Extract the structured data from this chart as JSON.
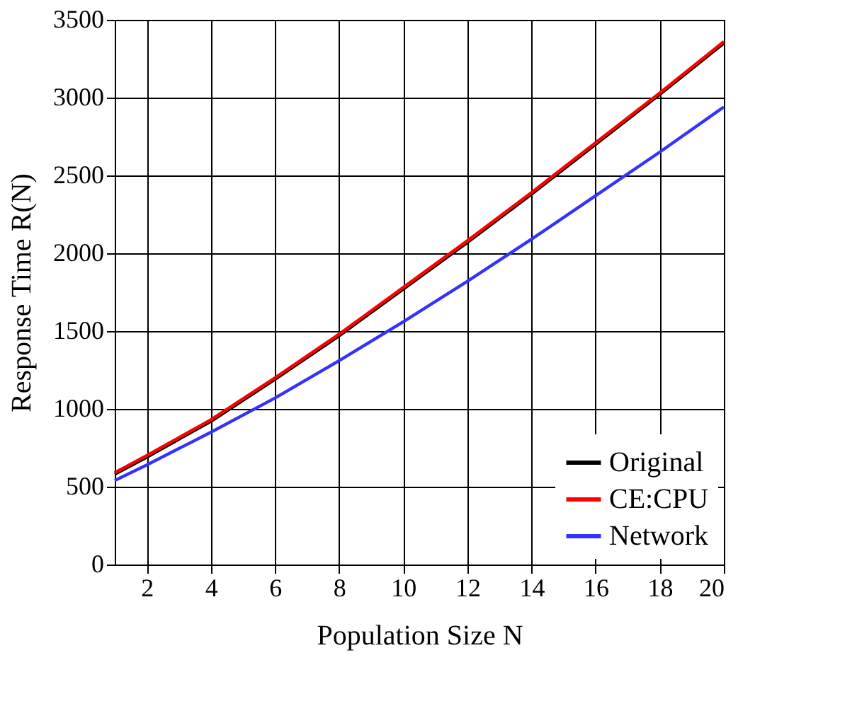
{
  "chart_data": {
    "type": "line",
    "xlabel": "Population Size N",
    "ylabel": "Response Time R(N)",
    "x": [
      1,
      2,
      4,
      6,
      8,
      10,
      12,
      14,
      16,
      18,
      20
    ],
    "series": [
      {
        "name": "Original",
        "color": "#000000",
        "values": [
          580,
          690,
          920,
          1190,
          1470,
          1770,
          2070,
          2380,
          2700,
          3020,
          3350
        ]
      },
      {
        "name": "CE:CPU",
        "color": "#ff0000",
        "values": [
          590,
          700,
          930,
          1200,
          1480,
          1780,
          2080,
          2390,
          2710,
          3030,
          3360
        ]
      },
      {
        "name": "Network",
        "color": "#3333ff",
        "values": [
          540,
          640,
          850,
          1070,
          1310,
          1560,
          1820,
          2090,
          2370,
          2650,
          2940
        ]
      }
    ],
    "xlim": [
      1,
      20
    ],
    "xticks": [
      2,
      4,
      6,
      8,
      10,
      12,
      14,
      16,
      18,
      20
    ],
    "ylim": [
      0,
      3500
    ],
    "yticks": [
      0,
      500,
      1000,
      1500,
      2000,
      2500,
      3000,
      3500
    ],
    "grid": true,
    "legend": "bottom right",
    "marker": "none",
    "line_style": "solid"
  }
}
